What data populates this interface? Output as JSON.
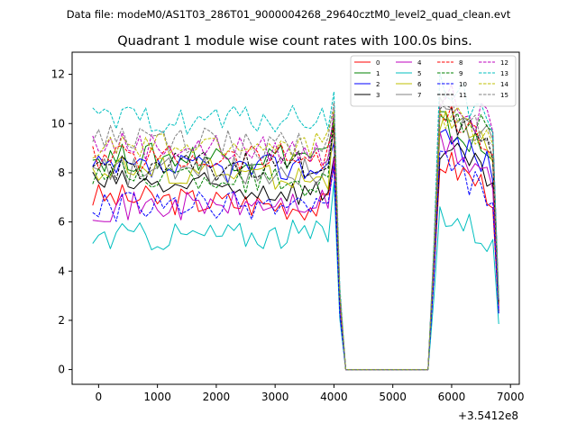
{
  "header": {
    "filename": "Data file: modeM0/AS1T03_286T01_9000004268_29640cztM0_level2_quad_clean.evt"
  },
  "chart_data": {
    "type": "line",
    "title": "Quadrant 1 module wise count rates with 100.0s bins.",
    "xlabel": "",
    "ylabel": "",
    "x_offset_label": "+3.5412e8",
    "xlim": [
      -450,
      7150
    ],
    "ylim": [
      -0.6,
      12.9
    ],
    "xticks": [
      0,
      1000,
      2000,
      3000,
      4000,
      5000,
      6000,
      7000
    ],
    "yticks": [
      0,
      2,
      4,
      6,
      8,
      10,
      12
    ],
    "legend_location": "top-right",
    "segments": [
      {
        "x_start": -100,
        "x_end": 3900,
        "step": 100
      },
      {
        "x_start": 4000,
        "x_end": 4200,
        "step": 100
      },
      {
        "x_start": 5700,
        "x_end": 6800,
        "step": 100
      }
    ],
    "gap_value": 0,
    "gap_range": [
      4200,
      5600
    ],
    "series": [
      {
        "name": "0",
        "color": "#ff0000",
        "style": "solid",
        "levels": [
          7.0,
          6.6,
          8.6
        ]
      },
      {
        "name": "1",
        "color": "#008000",
        "style": "solid",
        "levels": [
          8.6,
          8.4,
          10.0
        ]
      },
      {
        "name": "2",
        "color": "#0000ff",
        "style": "solid",
        "levels": [
          8.1,
          7.9,
          9.6
        ]
      },
      {
        "name": "3",
        "color": "#000000",
        "style": "solid",
        "levels": [
          7.6,
          7.2,
          9.0
        ]
      },
      {
        "name": "4",
        "color": "#bf00bf",
        "style": "solid",
        "levels": [
          6.6,
          7.0,
          9.2
        ]
      },
      {
        "name": "5",
        "color": "#00bfbf",
        "style": "solid",
        "levels": [
          5.4,
          5.9,
          6.6
        ]
      },
      {
        "name": "6",
        "color": "#bfbf00",
        "style": "solid",
        "levels": [
          8.2,
          8.3,
          10.2
        ]
      },
      {
        "name": "7",
        "color": "#808080",
        "style": "solid",
        "levels": [
          8.0,
          8.2,
          10.6
        ]
      },
      {
        "name": "8",
        "color": "#ff0000",
        "style": "dashed",
        "levels": [
          8.6,
          8.4,
          10.4
        ]
      },
      {
        "name": "9",
        "color": "#008000",
        "style": "dashed",
        "levels": [
          8.0,
          8.8,
          10.8
        ]
      },
      {
        "name": "10",
        "color": "#0000ff",
        "style": "dashed",
        "levels": [
          6.6,
          6.5,
          8.4
        ]
      },
      {
        "name": "11",
        "color": "#000000",
        "style": "dashed",
        "levels": [
          8.2,
          8.6,
          10.6
        ]
      },
      {
        "name": "12",
        "color": "#bf00bf",
        "style": "dashed",
        "levels": [
          9.2,
          9.1,
          11.2
        ]
      },
      {
        "name": "13",
        "color": "#00bfbf",
        "style": "dashed",
        "levels": [
          10.1,
          9.7,
          11.6
        ]
      },
      {
        "name": "14",
        "color": "#bfbf00",
        "style": "dashed",
        "levels": [
          9.0,
          8.8,
          10.6
        ]
      },
      {
        "name": "15",
        "color": "#808080",
        "style": "dashed",
        "levels": [
          9.4,
          9.0,
          11.0
        ]
      }
    ]
  }
}
